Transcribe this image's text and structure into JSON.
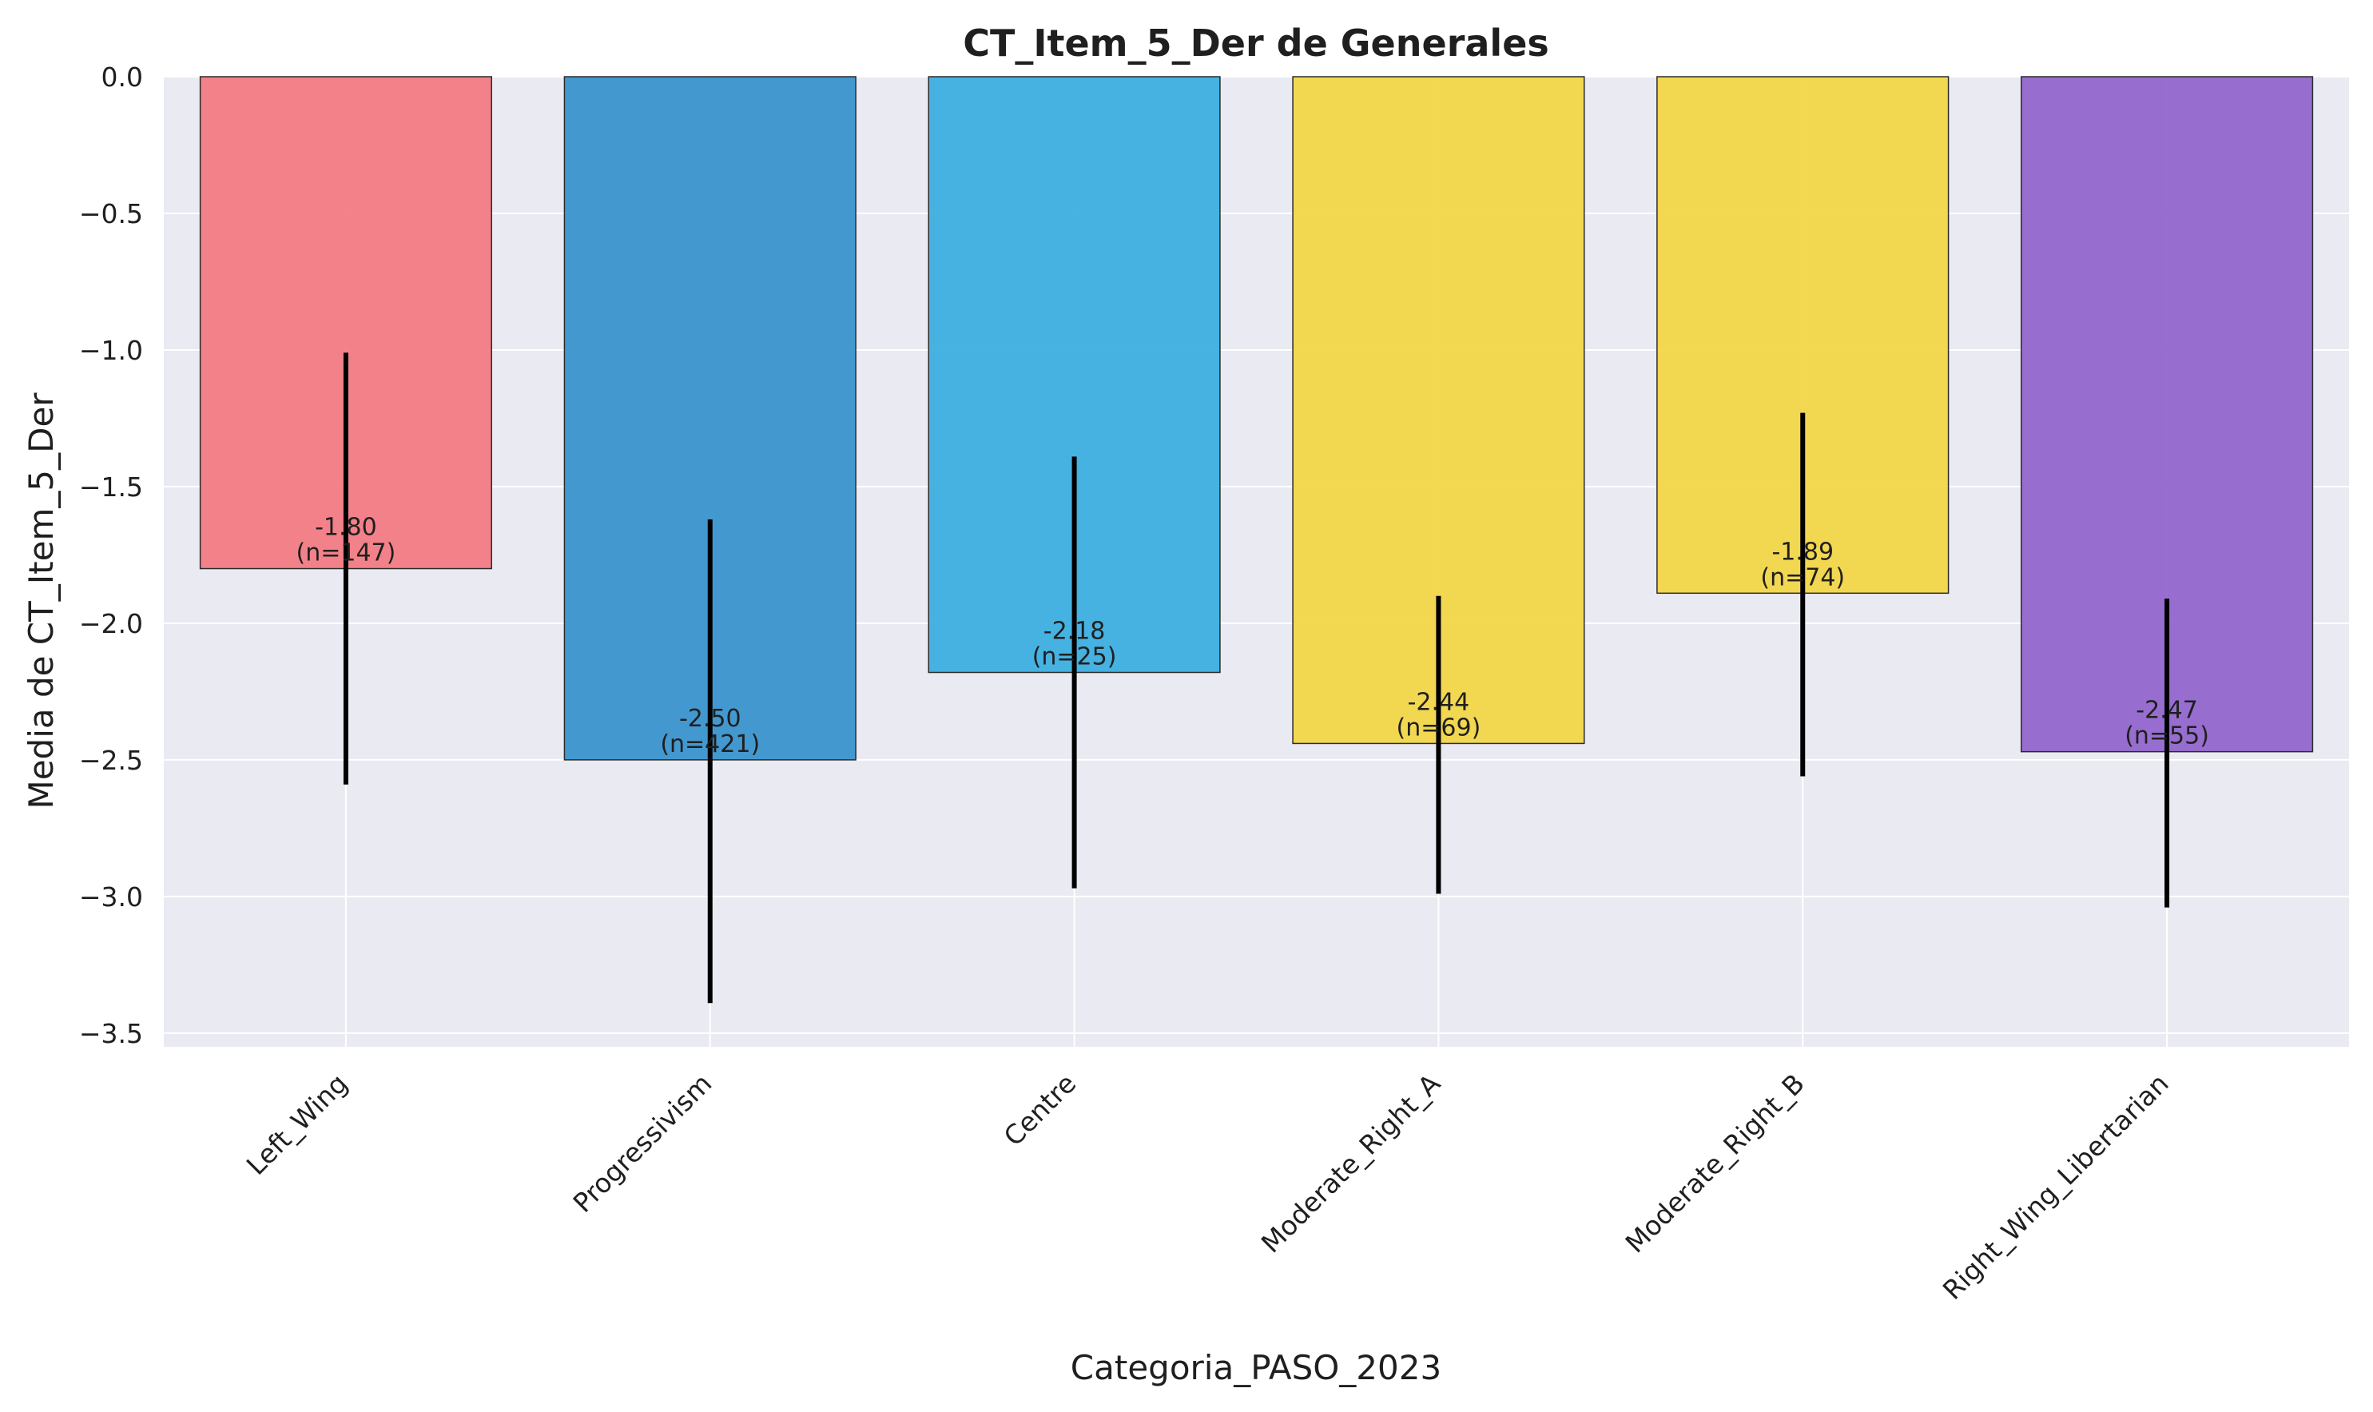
{
  "chart_data": {
    "type": "bar",
    "title": "CT_Item_5_Der de Generales",
    "xlabel": "Categoria_PASO_2023",
    "ylabel": "Media de CT_Item_5_Der",
    "ylim": [
      -3.55,
      0.0
    ],
    "yticks": [
      0.0,
      -0.5,
      -1.0,
      -1.5,
      -2.0,
      -2.5,
      -3.0,
      -3.5
    ],
    "ytick_labels": [
      "0.0",
      "−0.5",
      "−1.0",
      "−1.5",
      "−2.0",
      "−2.5",
      "−3.0",
      "−3.5"
    ],
    "grid": true,
    "background_color": "#eaeaf2",
    "categories": [
      "Left_Wing",
      "Progressivism",
      "Centre",
      "Moderate_Right_A",
      "Moderate_Right_B",
      "Right_Wing_Libertarian"
    ],
    "values": [
      -1.8,
      -2.5,
      -2.18,
      -2.44,
      -1.89,
      -2.47
    ],
    "error_low": [
      -2.59,
      -3.39,
      -2.97,
      -2.99,
      -2.56,
      -3.04
    ],
    "error_high": [
      -1.01,
      -1.62,
      -1.39,
      -1.9,
      -1.23,
      -1.91
    ],
    "n": [
      147,
      421,
      25,
      69,
      74,
      55
    ],
    "value_labels": [
      "-1.80",
      "-2.50",
      "-2.18",
      "-2.44",
      "-1.89",
      "-2.47"
    ],
    "n_labels": [
      "(n=147)",
      "(n=421)",
      "(n=25)",
      "(n=69)",
      "(n=74)",
      "(n=55)"
    ],
    "colors": [
      "#f27b83",
      "#3a93cc",
      "#3cafe0",
      "#f2d648",
      "#f2d648",
      "#9267cc"
    ]
  }
}
